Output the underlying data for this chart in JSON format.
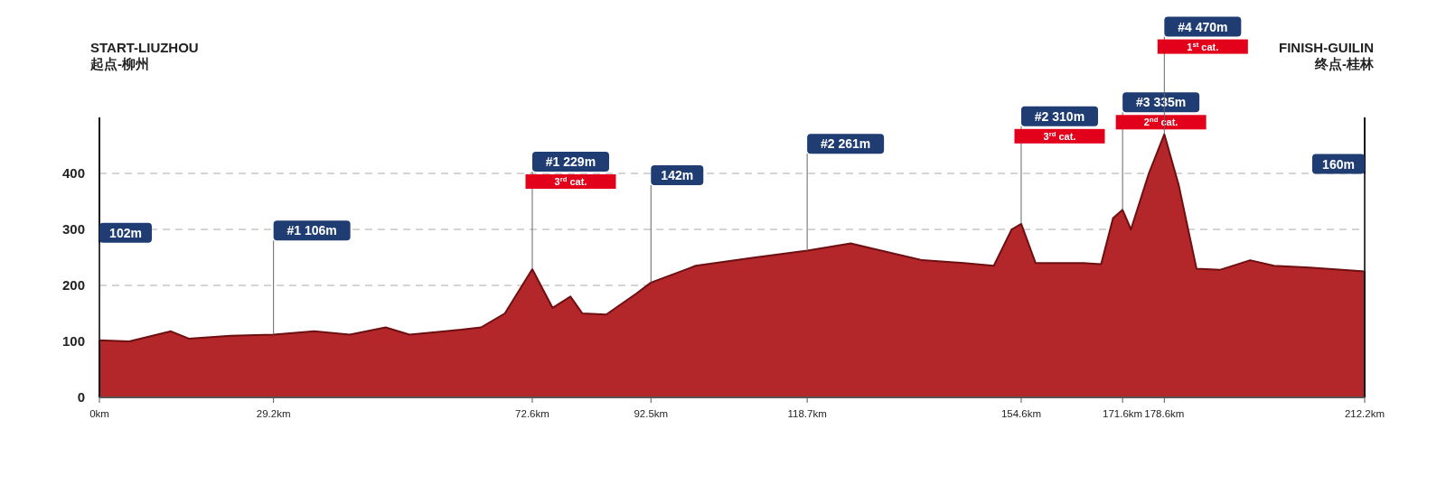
{
  "chart_data": {
    "type": "area",
    "x": [
      0,
      5,
      12,
      15,
      22,
      29.2,
      36,
      42,
      48,
      52,
      58,
      64,
      68,
      72.6,
      76,
      79,
      81,
      85,
      90,
      92.5,
      100,
      110,
      118.7,
      126,
      130,
      138,
      145,
      150,
      153,
      154.6,
      157,
      165,
      168,
      170,
      171.6,
      173,
      176,
      178.6,
      181,
      184,
      188,
      193,
      197,
      203,
      212.2
    ],
    "series": [
      {
        "color": "#b3262a",
        "values": [
          102,
          100,
          118,
          105,
          110,
          112,
          118,
          112,
          125,
          112,
          118,
          125,
          150,
          229,
          160,
          180,
          150,
          148,
          185,
          205,
          235,
          250,
          262,
          275,
          265,
          245,
          240,
          235,
          300,
          310,
          240,
          240,
          238,
          320,
          335,
          300,
          400,
          470,
          380,
          230,
          228,
          245,
          235,
          232,
          225
        ]
      }
    ],
    "xlim": [
      0,
      212.2
    ],
    "ylim": [
      0,
      500
    ],
    "yticks": [
      0,
      100,
      200,
      300,
      400
    ],
    "xticks": [
      {
        "value": 0,
        "label": "0km"
      },
      {
        "value": 29.2,
        "label": "29.2km"
      },
      {
        "value": 72.6,
        "label": "72.6km"
      },
      {
        "value": 92.5,
        "label": "92.5km"
      },
      {
        "value": 118.7,
        "label": "118.7km"
      },
      {
        "value": 154.6,
        "label": "154.6km"
      },
      {
        "value": 171.6,
        "label": "171.6km"
      },
      {
        "value": 178.6,
        "label": "178.6km"
      },
      {
        "value": 212.2,
        "label": "212.2km"
      }
    ],
    "grid": "y",
    "line_style": "solid",
    "annotations": [
      "START-LIUZHOU",
      "起点-柳州",
      "FINISH-GUILIN",
      "终点-桂林",
      {
        "text": "102m",
        "x": 0,
        "y": 102
      },
      {
        "text": "#1 106m",
        "x": 29.2,
        "y": 106
      },
      {
        "text": "#1 229m",
        "x": 72.6,
        "y": 229
      },
      "3$^{rd}$ cat.",
      {
        "text": "142m",
        "x": 92.5,
        "y": 205
      },
      {
        "text": "#2 261m",
        "x": 118.7,
        "y": 261
      },
      {
        "text": "#2 310m",
        "x": 154.6,
        "y": 310
      },
      "3$^{rd}$ cat.",
      {
        "text": "#3 335m",
        "x": 171.6,
        "y": 335
      },
      "2$^{nd}$ cat.",
      {
        "text": "#4 470m",
        "x": 178.6,
        "y": 470
      },
      "1$^{st}$ cat.",
      {
        "text": "160m",
        "x": 212.2,
        "y": 225
      }
    ]
  }
}
